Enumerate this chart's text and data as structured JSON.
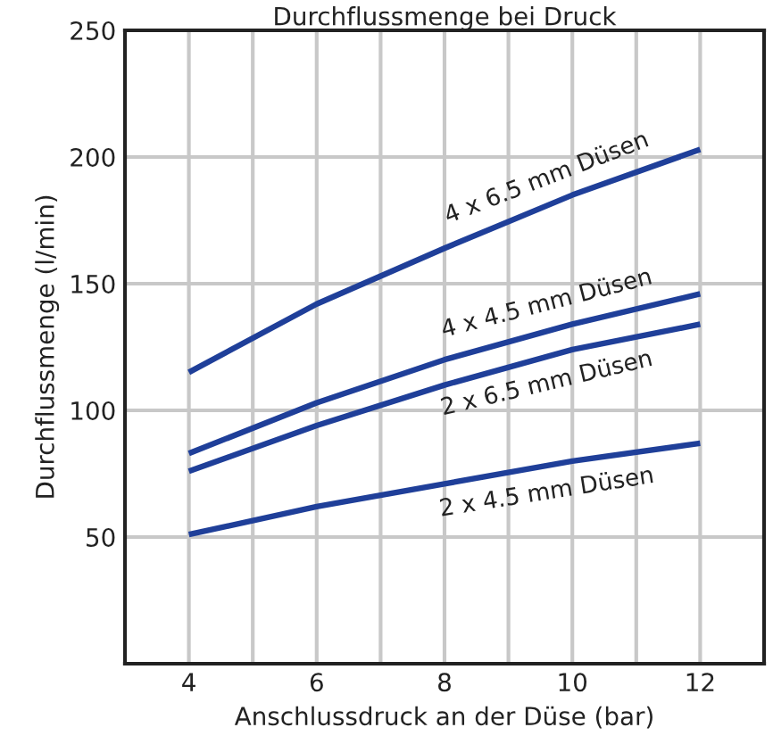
{
  "chart_data": {
    "type": "line",
    "title": "Durchflussmenge bei Druck",
    "xlabel": "Anschlussdruck an der Düse (bar)",
    "ylabel": "Durchflussmenge (l/min)",
    "x": [
      4,
      6,
      8,
      10,
      12
    ],
    "series": [
      {
        "name": "4 x 6.5 mm Düsen",
        "color": "#1f3f99",
        "values": [
          115,
          142,
          164,
          185,
          203
        ]
      },
      {
        "name": "4 x 4.5 mm Düsen",
        "color": "#1f3f99",
        "values": [
          83,
          103,
          120,
          134,
          146
        ]
      },
      {
        "name": "2 x 6.5 mm Düsen",
        "color": "#1f3f99",
        "values": [
          76,
          94,
          110,
          124,
          134
        ]
      },
      {
        "name": "2 x 4.5 mm Düsen",
        "color": "#1f3f99",
        "values": [
          51,
          62,
          71,
          80,
          87
        ]
      }
    ],
    "xlim": [
      3,
      13
    ],
    "xticks": [
      4,
      {
        "value": 5,
        "label": null
      },
      6,
      {
        "value": 7,
        "label": null
      },
      8,
      {
        "value": 9,
        "label": null
      },
      10,
      {
        "value": 11,
        "label": null
      },
      12
    ],
    "ylim": [
      0,
      250
    ],
    "yticks": [
      50,
      100,
      150,
      200,
      250
    ],
    "grid": true,
    "legend": false,
    "marker": "none",
    "line_style": "solid"
  }
}
